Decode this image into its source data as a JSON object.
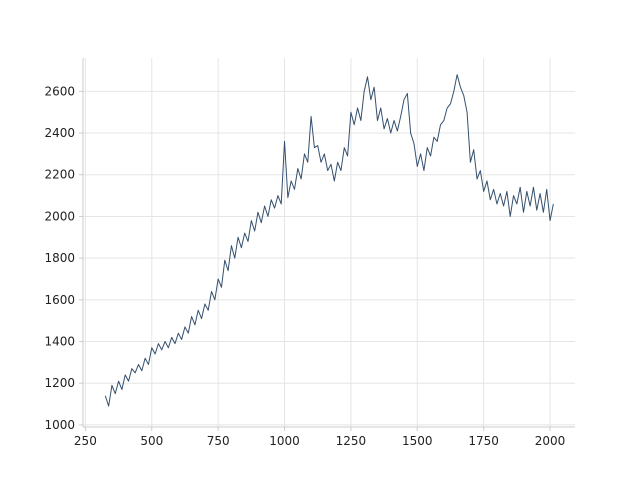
{
  "chart_data": {
    "type": "line",
    "x": [
      325,
      337.5,
      350,
      362.5,
      375,
      387.5,
      400,
      412.5,
      425,
      437.5,
      450,
      462.5,
      475,
      487.5,
      500,
      512.5,
      525,
      537.5,
      550,
      562.5,
      575,
      587.5,
      600,
      612.5,
      625,
      637.5,
      650,
      662.5,
      675,
      687.5,
      700,
      712.5,
      725,
      737.5,
      750,
      762.5,
      775,
      787.5,
      800,
      812.5,
      825,
      837.5,
      850,
      862.5,
      875,
      887.5,
      900,
      912.5,
      925,
      937.5,
      950,
      962.5,
      975,
      987.5,
      1000,
      1012.5,
      1025,
      1037.5,
      1050,
      1062.5,
      1075,
      1087.5,
      1100,
      1112.5,
      1125,
      1137.5,
      1150,
      1162.5,
      1175,
      1187.5,
      1200,
      1212.5,
      1225,
      1237.5,
      1250,
      1262.5,
      1275,
      1287.5,
      1300,
      1312.5,
      1325,
      1337.5,
      1350,
      1362.5,
      1375,
      1387.5,
      1400,
      1412.5,
      1425,
      1437.5,
      1450,
      1462.5,
      1475,
      1487.5,
      1500,
      1512.5,
      1525,
      1537.5,
      1550,
      1562.5,
      1575,
      1587.5,
      1600,
      1612.5,
      1625,
      1637.5,
      1650,
      1662.5,
      1675,
      1687.5,
      1700,
      1712.5,
      1725,
      1737.5,
      1750,
      1762.5,
      1775,
      1787.5,
      1800,
      1812.5,
      1825,
      1837.5,
      1850,
      1862.5,
      1875,
      1887.5,
      1900,
      1912.5,
      1925,
      1937.5,
      1950,
      1962.5,
      1975,
      1987.5,
      2000,
      2012.5
    ],
    "series": [
      {
        "color": "#34506e",
        "values": [
          1140,
          1090,
          1190,
          1150,
          1210,
          1170,
          1240,
          1210,
          1270,
          1250,
          1290,
          1260,
          1320,
          1290,
          1370,
          1340,
          1390,
          1360,
          1400,
          1370,
          1420,
          1390,
          1440,
          1410,
          1470,
          1440,
          1520,
          1480,
          1550,
          1510,
          1580,
          1550,
          1640,
          1600,
          1700,
          1660,
          1790,
          1740,
          1860,
          1800,
          1900,
          1850,
          1920,
          1880,
          1980,
          1930,
          2020,
          1970,
          2050,
          2000,
          2080,
          2040,
          2100,
          2060,
          2360,
          2090,
          2170,
          2130,
          2230,
          2180,
          2300,
          2260,
          2480,
          2330,
          2340,
          2260,
          2300,
          2220,
          2250,
          2170,
          2260,
          2220,
          2330,
          2290,
          2500,
          2440,
          2520,
          2460,
          2600,
          2670,
          2560,
          2620,
          2460,
          2520,
          2420,
          2470,
          2400,
          2460,
          2410,
          2480,
          2560,
          2590,
          2400,
          2350,
          2240,
          2300,
          2220,
          2330,
          2290,
          2380,
          2360,
          2440,
          2460,
          2520,
          2540,
          2600,
          2680,
          2620,
          2580,
          2500,
          2260,
          2320,
          2180,
          2220,
          2120,
          2170,
          2080,
          2130,
          2060,
          2110,
          2050,
          2120,
          2000,
          2100,
          2060,
          2140,
          2020,
          2120,
          2050,
          2140,
          2030,
          2110,
          2020,
          2130,
          1980,
          2060
        ]
      }
    ],
    "xlim": [
      241,
      2094
    ],
    "xticks": [
      250,
      500,
      750,
      1000,
      1250,
      1500,
      1750,
      2000
    ],
    "ylim": [
      990,
      2760
    ],
    "yticks": [
      1000,
      1200,
      1400,
      1600,
      1800,
      2000,
      2200,
      2400,
      2600
    ],
    "grid": true
  }
}
